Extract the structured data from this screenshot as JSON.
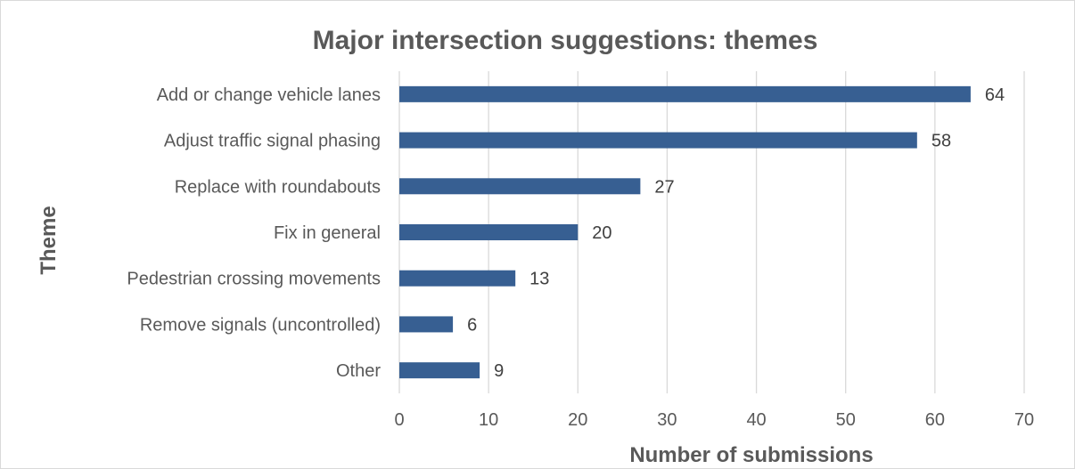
{
  "chart_data": {
    "type": "bar",
    "orientation": "horizontal",
    "title": "Major intersection suggestions: themes",
    "xlabel": "Number of submissions",
    "ylabel": "Theme",
    "categories": [
      "Add or change vehicle lanes",
      "Adjust traffic signal phasing",
      "Replace with roundabouts",
      "Fix in general",
      "Pedestrian crossing movements",
      "Remove signals (uncontrolled)",
      "Other"
    ],
    "values": [
      64,
      58,
      27,
      20,
      13,
      6,
      9
    ],
    "xlim": [
      0,
      70
    ],
    "xticks": [
      0,
      10,
      20,
      30,
      40,
      50,
      60,
      70
    ],
    "grid": "vertical",
    "legend": "none",
    "bar_color": "#375f92",
    "data_labels": true
  }
}
